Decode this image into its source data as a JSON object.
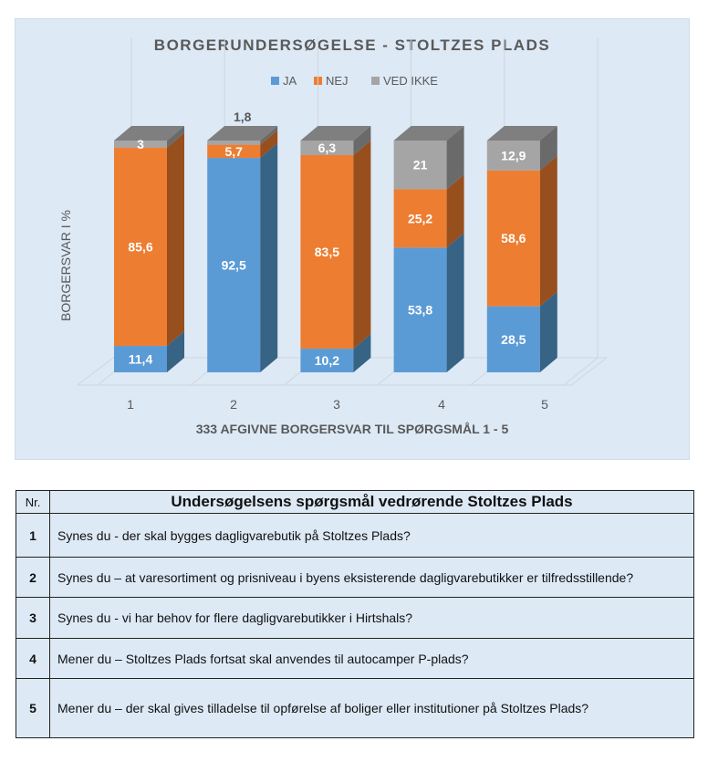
{
  "chart_data": {
    "type": "bar",
    "stacked": true,
    "three_d": true,
    "title": "BORGERUNDERSØGELSE - STOLTZES PLADS",
    "xlabel": "333 AFGIVNE BORGERSVAR TIL SPØRGSMÅL 1 - 5",
    "ylabel": "BORGERSVAR I %",
    "categories": [
      "1",
      "2",
      "3",
      "4",
      "5"
    ],
    "legend_position": "top",
    "ylim": [
      0,
      100
    ],
    "series": [
      {
        "name": "JA",
        "color": "#5b9bd5",
        "side": "#376385",
        "values": [
          11.4,
          92.5,
          10.2,
          53.8,
          28.5
        ],
        "labels": [
          "11,4",
          "92,5",
          "10,2",
          "53,8",
          "28,5"
        ]
      },
      {
        "name": "NEJ",
        "color": "#ed7d31",
        "side": "#974f1e",
        "values": [
          85.6,
          5.7,
          83.5,
          25.2,
          58.6
        ],
        "labels": [
          "85,6",
          "5,7",
          "83,5",
          "25,2",
          "58,6"
        ]
      },
      {
        "name": "VED IKKE",
        "color": "#a5a5a5",
        "side": "#6a6a6a",
        "values": [
          3,
          1.8,
          6.3,
          21,
          12.9
        ],
        "labels": [
          "3",
          "1,8",
          "6,3",
          "21",
          "12,9"
        ]
      }
    ]
  },
  "table": {
    "headers": [
      "Nr.",
      "Undersøgelsens spørgsmål vedrørende Stoltzes Plads"
    ],
    "rows": [
      {
        "nr": "1",
        "q": "Synes du - der skal bygges dagligvarebutik på Stoltzes Plads?"
      },
      {
        "nr": "2",
        "q": "Synes du – at varesortiment og prisniveau i byens eksisterende dagligvarebutikker er tilfredsstillende?"
      },
      {
        "nr": "3",
        "q": "Synes du - vi har behov for flere dagligvarebutikker i Hirtshals?"
      },
      {
        "nr": "4",
        "q": "Mener du – Stoltzes Plads fortsat skal anvendes til autocamper P-plads?"
      },
      {
        "nr": "5",
        "q": "Mener du – der skal gives tilladelse til opførelse af boliger eller institutioner på Stoltzes Plads?"
      }
    ]
  }
}
